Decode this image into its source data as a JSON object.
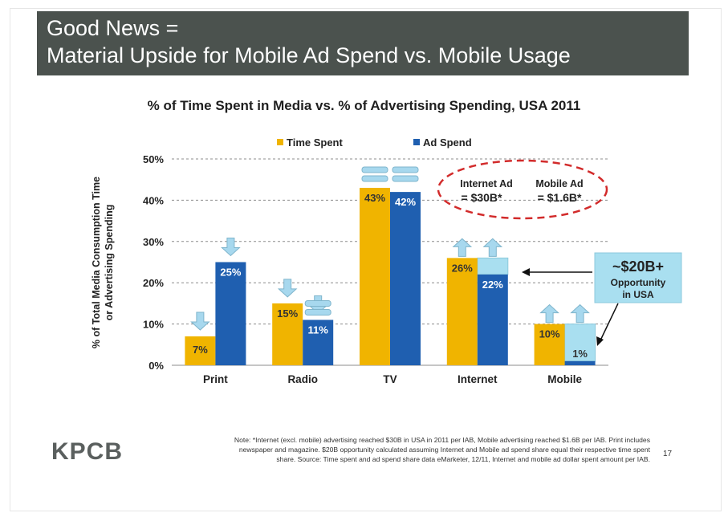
{
  "header": {
    "line1": "Good News =",
    "line2": "Material Upside for Mobile Ad Spend vs. Mobile Usage"
  },
  "chart_data": {
    "type": "bar",
    "title": "% of Time Spent in Media vs. % of Advertising Spending, USA 2011",
    "ylabel_line1": "% of Total Media Consumption Time",
    "ylabel_line2": "or Advertising Spending",
    "xlabel": "",
    "ylim": [
      0,
      50
    ],
    "yticks": [
      {
        "value": 0,
        "label": "0%"
      },
      {
        "value": 10,
        "label": "10%"
      },
      {
        "value": 20,
        "label": "20%"
      },
      {
        "value": 30,
        "label": "30%"
      },
      {
        "value": 40,
        "label": "40%"
      },
      {
        "value": 50,
        "label": "50%"
      }
    ],
    "categories": [
      "Print",
      "Radio",
      "TV",
      "Internet",
      "Mobile"
    ],
    "series": [
      {
        "name": "Time Spent",
        "color": "#f0b400",
        "values": [
          7,
          15,
          43,
          26,
          10
        ],
        "labels": [
          "7%",
          "15%",
          "43%",
          "26%",
          "10%"
        ]
      },
      {
        "name": "Ad Spend",
        "color": "#1f5fb0",
        "values": [
          25,
          11,
          42,
          22,
          1
        ],
        "labels": [
          "25%",
          "11%",
          "42%",
          "22%",
          "1%"
        ]
      }
    ],
    "trend_markers": [
      "down",
      "down",
      "equal",
      "up",
      "up"
    ],
    "opportunity_gap": [
      {
        "category": "Internet",
        "from": 22,
        "to": 26
      },
      {
        "category": "Mobile",
        "from": 1,
        "to": 10
      }
    ],
    "legend_position": "top-center",
    "grid": true,
    "annotations": {
      "oval_internet_line1": "Internet Ad",
      "oval_internet_line2": "= $30B*",
      "oval_mobile_line1": "Mobile Ad",
      "oval_mobile_line2": "= $1.6B*",
      "callout_big": "~$20B+",
      "callout_line2": "Opportunity",
      "callout_line3": "in USA"
    }
  },
  "footnote": {
    "line1": "Note: *Internet (excl. mobile) advertising reached $30B in USA in 2011 per IAB, Mobile advertising reached $1.6B per IAB. Print includes",
    "line2": "newspaper and magazine. $20B opportunity calculated assuming Internet and Mobile ad spend share equal their respective time spent",
    "line3": "share. Source: Time spent and ad spend share data eMarketer, 12/11, Internet and mobile ad dollar spent amount per IAB."
  },
  "logo": "KPCB",
  "page_number": "17",
  "colors": {
    "header_bg": "#4b524e",
    "time_spent": "#f0b400",
    "ad_spend": "#1f5fb0",
    "gap_fill": "#a9dff0",
    "arrow_fill": "#a7d8ee",
    "oval_stroke": "#d22b2b"
  }
}
